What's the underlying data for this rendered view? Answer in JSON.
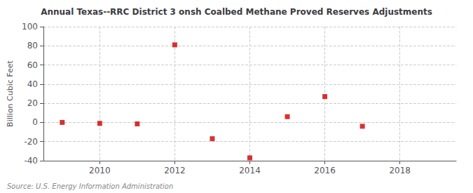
{
  "chart_data": {
    "type": "scatter",
    "title": "Annual Texas--RRC District 3 onsh Coalbed Methane Proved Reserves Adjustments",
    "ylabel": "Billion Cubic Feet",
    "annotation": "Source: U.S. Energy Information Administration",
    "x": [
      2009,
      2010,
      2011,
      2012,
      2013,
      2014,
      2015,
      2016,
      2017
    ],
    "values": [
      0.0,
      -1.0,
      -1.5,
      81.0,
      -17.0,
      -37.0,
      6.0,
      27.0,
      -4.0
    ],
    "color": "#cc0000",
    "marker": "square",
    "xlim": [
      2008.5,
      2019.5
    ],
    "ylim": [
      -40,
      100
    ],
    "xticks": [
      2010,
      2012,
      2014,
      2016,
      2018
    ],
    "yticks": [
      -40,
      -20,
      0,
      20,
      40,
      60,
      80,
      100
    ],
    "grid": true
  }
}
